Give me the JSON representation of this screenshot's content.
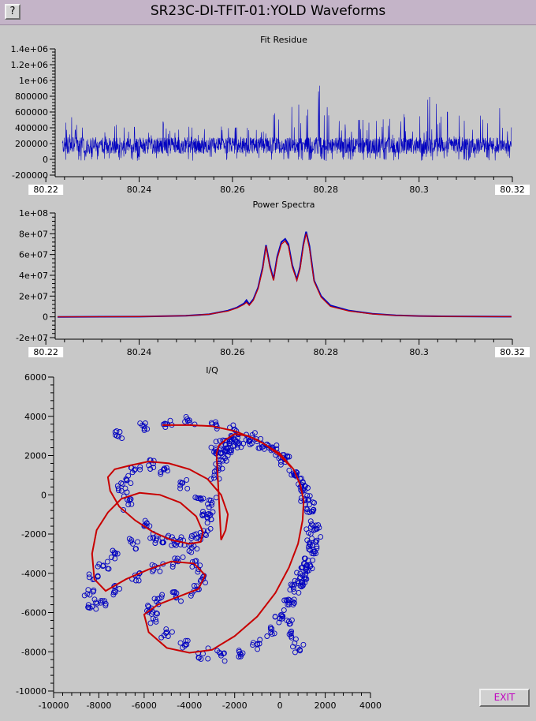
{
  "window": {
    "title": "SR23C-DI-TFIT-01:YOLD Waveforms",
    "help_label": "?"
  },
  "exit_label": "EXIT",
  "colors": {
    "data": "#0000c0",
    "fit": "#c80000",
    "background": "#c8c8c8",
    "exit_text": "#c000c0"
  },
  "chart_data": [
    {
      "type": "line",
      "title": "Fit Residue",
      "xlim": [
        80.222,
        80.32
      ],
      "ylim": [
        -200000,
        1400000
      ],
      "xticks": [
        80.22,
        80.24,
        80.26,
        80.28,
        80.3,
        80.32
      ],
      "xtick_labels": [
        "80.22",
        "80.24",
        "80.26",
        "80.28",
        "80.3",
        "80.32"
      ],
      "yticks": [
        -200000,
        0,
        200000,
        400000,
        600000,
        800000,
        1000000,
        1200000,
        1400000
      ],
      "ytick_labels": [
        "-200000",
        "0",
        "200000",
        "400000",
        "600000",
        "800000",
        "1e+06",
        "1.2e+06",
        "1.4e+06"
      ],
      "series": [
        {
          "color": "#0000c0",
          "x": [
            80.2235,
            80.226,
            80.228,
            80.2295,
            80.232,
            80.2345,
            80.2375,
            80.24,
            80.2425,
            80.244,
            80.2475,
            80.2485,
            80.252,
            80.2555,
            80.2595,
            80.2625,
            80.2645,
            80.2675,
            80.268,
            80.2705,
            80.2715,
            80.2725,
            80.2745,
            80.2752,
            80.2765,
            80.2778,
            80.2792,
            80.2832,
            80.2905,
            80.2955,
            80.3025,
            80.307,
            80.3095,
            80.3128,
            80.317,
            80.3195,
            80.3198
          ],
          "y": [
            420000,
            560000,
            470000,
            480000,
            400000,
            470000,
            420000,
            400000,
            560000,
            500000,
            420000,
            450000,
            390000,
            460000,
            390000,
            420000,
            360000,
            420000,
            960000,
            640000,
            360000,
            660000,
            700000,
            880000,
            760000,
            1000000,
            920000,
            500000,
            500000,
            520000,
            800000,
            600000,
            840000,
            740000,
            640000,
            720000,
            900000
          ],
          "baseline": [
            100000,
            250000
          ]
        }
      ]
    },
    {
      "type": "line",
      "title": "Power Spectra",
      "xlim": [
        80.222,
        80.32
      ],
      "ylim": [
        -20000000,
        100000000
      ],
      "xticks": [
        80.22,
        80.24,
        80.26,
        80.28,
        80.3,
        80.32
      ],
      "xtick_labels": [
        "80.22",
        "80.24",
        "80.26",
        "80.28",
        "80.3",
        "80.32"
      ],
      "yticks": [
        -20000000,
        0,
        20000000,
        40000000,
        60000000,
        80000000,
        100000000
      ],
      "ytick_labels": [
        "-2e+07",
        "0",
        "2e+07",
        "4e+07",
        "6e+07",
        "8e+07",
        "1e+08"
      ],
      "series": [
        {
          "name": "data",
          "color": "#0000c0",
          "x": [
            80.2225,
            80.24,
            80.25,
            80.255,
            80.259,
            80.261,
            80.2625,
            80.263,
            80.2636,
            80.2645,
            80.2655,
            80.2665,
            80.2672,
            80.268,
            80.2688,
            80.2696,
            80.2705,
            80.2713,
            80.272,
            80.2728,
            80.2738,
            80.2745,
            80.2752,
            80.2758,
            80.2765,
            80.2775,
            80.279,
            80.281,
            80.285,
            80.29,
            80.295,
            80.3,
            80.305,
            80.3198
          ],
          "y": [
            0,
            200000,
            1000000,
            2500000,
            6000000,
            9000000,
            13000000,
            16000000,
            12000000,
            17000000,
            28000000,
            48000000,
            69000000,
            50000000,
            36000000,
            58000000,
            72000000,
            75000000,
            70000000,
            50000000,
            36000000,
            48000000,
            70000000,
            82000000,
            68000000,
            35000000,
            20000000,
            11000000,
            6000000,
            3000000,
            1500000,
            800000,
            500000,
            200000
          ]
        },
        {
          "name": "fit",
          "color": "#c80000",
          "x": [
            80.2225,
            80.24,
            80.25,
            80.255,
            80.259,
            80.261,
            80.2625,
            80.263,
            80.2636,
            80.2645,
            80.2655,
            80.2665,
            80.2672,
            80.268,
            80.2688,
            80.2696,
            80.2705,
            80.2713,
            80.272,
            80.2728,
            80.2738,
            80.2745,
            80.2752,
            80.2758,
            80.2765,
            80.2775,
            80.279,
            80.281,
            80.285,
            80.29,
            80.295,
            80.3,
            80.305,
            80.3198
          ],
          "y": [
            0,
            200000,
            1000000,
            2500000,
            5500000,
            8500000,
            12000000,
            14000000,
            11000000,
            16000000,
            27000000,
            46000000,
            68000000,
            48000000,
            35000000,
            56000000,
            70000000,
            73000000,
            68000000,
            48000000,
            35000000,
            46000000,
            68000000,
            80000000,
            66000000,
            34000000,
            19000000,
            10000000,
            5500000,
            2800000,
            1400000,
            700000,
            400000,
            100000
          ]
        }
      ]
    },
    {
      "type": "scatter",
      "title": "I/Q",
      "xlim": [
        -10000,
        4000
      ],
      "ylim": [
        -10000,
        6000
      ],
      "xticks": [
        -10000,
        -8000,
        -6000,
        -4000,
        -2000,
        0,
        2000,
        4000
      ],
      "xtick_labels": [
        "-10000",
        "-8000",
        "-6000",
        "-4000",
        "-2000",
        "0",
        "2000",
        "4000"
      ],
      "yticks": [
        -10000,
        -8000,
        -6000,
        -4000,
        -2000,
        0,
        2000,
        4000,
        6000
      ],
      "ytick_labels": [
        "-10000",
        "-8000",
        "-6000",
        "-4000",
        "-2000",
        "0",
        "2000",
        "4000",
        "6000"
      ],
      "series": [
        {
          "name": "data",
          "color": "#0000c0",
          "marker": "circle",
          "x": [
            -7200,
            -6000,
            -5000,
            -4000,
            -3000,
            -2000,
            -1200,
            -500,
            200,
            700,
            1000,
            1300,
            1400,
            1300,
            1100,
            800,
            400,
            0,
            -400,
            -1000,
            -1800,
            -2600,
            -3400,
            -4200,
            -5000,
            -5600,
            -5800,
            -5400,
            -4600,
            -3800,
            -3400,
            -3700,
            -4500,
            -5400,
            -6400,
            -7300,
            -7900,
            -8300,
            -8400,
            -8200,
            -7800,
            -7300,
            -6500,
            -5600,
            -4700,
            -3900,
            -3300,
            -3200,
            -3500,
            -4300,
            -5100,
            -5800,
            -6400,
            -6800,
            -7000,
            -6700,
            -6000,
            -5200,
            -4400,
            -3700,
            -3200,
            -3000,
            -2900,
            -2700,
            -2300,
            -2000,
            -1900,
            -2200,
            -2600,
            -2800,
            -2600,
            -2300,
            -1500,
            -800,
            -300,
            200,
            600,
            900,
            1100,
            1300,
            1500,
            1600,
            1500,
            1200,
            900,
            600,
            400,
            300,
            500,
            800,
            1000,
            1200
          ],
          "y": [
            3000,
            3500,
            3600,
            3700,
            3600,
            3300,
            2900,
            2500,
            1800,
            1000,
            300,
            -500,
            -1500,
            -2500,
            -3500,
            -4500,
            -5500,
            -6300,
            -7000,
            -7600,
            -8000,
            -8200,
            -8100,
            -7700,
            -7000,
            -6300,
            -5700,
            -5300,
            -5200,
            -4900,
            -4200,
            -3600,
            -3400,
            -3700,
            -4100,
            -4900,
            -5400,
            -5700,
            -5100,
            -4300,
            -3600,
            -3000,
            -2500,
            -2200,
            -2300,
            -2700,
            -2000,
            -1000,
            -200,
            600,
            1300,
            1500,
            1300,
            800,
            200,
            -500,
            -1600,
            -2200,
            -2300,
            -2000,
            -1200,
            -400,
            1000,
            1600,
            2000,
            2500,
            2700,
            2800,
            2500,
            2200,
            2100,
            2400,
            2800,
            2600,
            2300,
            1800,
            1100,
            400,
            -200,
            -900,
            -1800,
            -2400,
            -3000,
            -3600,
            -4200,
            -4800,
            -5600,
            -6400,
            -7200,
            -7800,
            -4500,
            -3900
          ]
        },
        {
          "name": "fit",
          "color": "#c80000",
          "x": [
            -5200,
            -4000,
            -3000,
            -2000,
            -1000,
            0,
            600,
            900,
            1050,
            1000,
            800,
            400,
            -200,
            -1000,
            -2000,
            -3000,
            -4000,
            -5000,
            -5800,
            -6000,
            -5400,
            -4500,
            -3600,
            -3300,
            -3800,
            -4800,
            -5800,
            -6800,
            -7700,
            -8200,
            -8300,
            -8100,
            -7600,
            -7000,
            -6200,
            -5300,
            -4400,
            -3700,
            -3400,
            -3500,
            -4000,
            -4800,
            -5600,
            -6400,
            -7100,
            -7500,
            -7600,
            -7300,
            -6600,
            -5800,
            -4900,
            -4000,
            -3200,
            -2600,
            -2300,
            -2400,
            -2600,
            -2800,
            -2700,
            -2400,
            -2000,
            -1400,
            -700,
            0,
            500
          ],
          "y": [
            3550,
            3550,
            3500,
            3250,
            2800,
            2100,
            1300,
            500,
            -300,
            -1300,
            -2500,
            -3700,
            -5000,
            -6200,
            -7200,
            -7900,
            -8050,
            -7800,
            -7000,
            -6100,
            -5600,
            -5200,
            -4800,
            -4100,
            -3500,
            -3400,
            -3800,
            -4300,
            -4900,
            -4300,
            -3000,
            -1800,
            -900,
            -200,
            100,
            0,
            -400,
            -1100,
            -1900,
            -2400,
            -2500,
            -2300,
            -1900,
            -1300,
            -600,
            200,
            900,
            1300,
            1500,
            1700,
            1600,
            1300,
            800,
            0,
            -1000,
            -1800,
            -2300,
            2100,
            2500,
            2800,
            3100,
            3000,
            2600,
            2000,
            1400
          ]
        }
      ]
    }
  ]
}
